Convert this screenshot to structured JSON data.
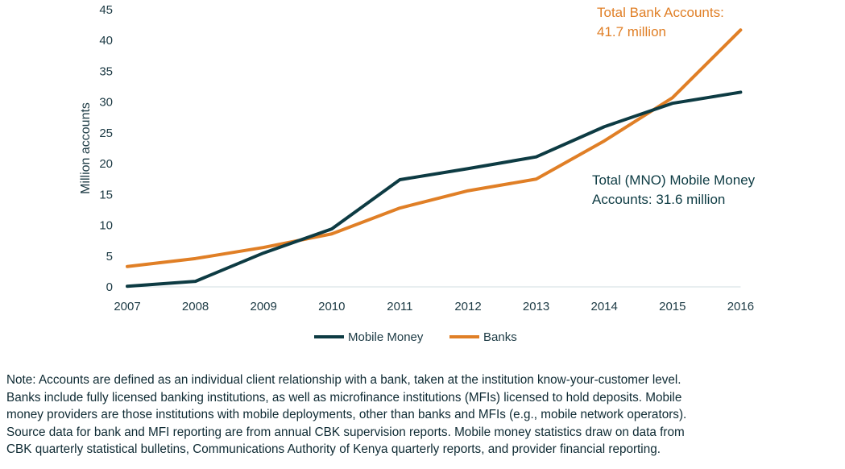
{
  "chart_data": {
    "type": "line",
    "title": "",
    "xlabel": "",
    "ylabel": "Million accounts",
    "ylim": [
      0,
      45
    ],
    "yticks": [
      "0",
      "5",
      "10",
      "15",
      "20",
      "25",
      "30",
      "35",
      "40",
      "45"
    ],
    "categories": [
      "2007",
      "2008",
      "2009",
      "2010",
      "2011",
      "2012",
      "2013",
      "2014",
      "2015",
      "2016"
    ],
    "grid": false,
    "legend_placement": "bottom",
    "series": [
      {
        "name": "Mobile Money",
        "color": "#0d3b43",
        "values": [
          0.1,
          0.9,
          5.5,
          9.4,
          17.4,
          19.2,
          21.1,
          26.0,
          29.8,
          31.6
        ]
      },
      {
        "name": "Banks",
        "color": "#e07f26",
        "values": [
          3.3,
          4.6,
          6.4,
          8.6,
          12.8,
          15.6,
          17.5,
          23.7,
          30.7,
          41.7
        ]
      }
    ],
    "annotations": [
      {
        "lines": [
          "Total Bank Accounts:",
          "41.7 million"
        ],
        "color": "#e07f26"
      },
      {
        "lines": [
          "Total (MNO) Mobile Money",
          "Accounts: 31.6 million"
        ],
        "color": "#0d3b43"
      }
    ]
  },
  "note": [
    "Note: Accounts are defined as an individual client relationship with a bank, taken at the institution know-your-customer level.",
    "Banks include fully licensed banking institutions, as well as microfinance institutions (MFIs) licensed to hold deposits. Mobile",
    "money providers are those institutions with mobile deployments, other than banks and MFIs (e.g., mobile network operators).",
    "Source data for bank and MFI reporting are from annual CBK supervision reports. Mobile money statistics draw on data from",
    "CBK quarterly statistical bulletins, Communications Authority of Kenya quarterly reports, and provider financial reporting."
  ]
}
